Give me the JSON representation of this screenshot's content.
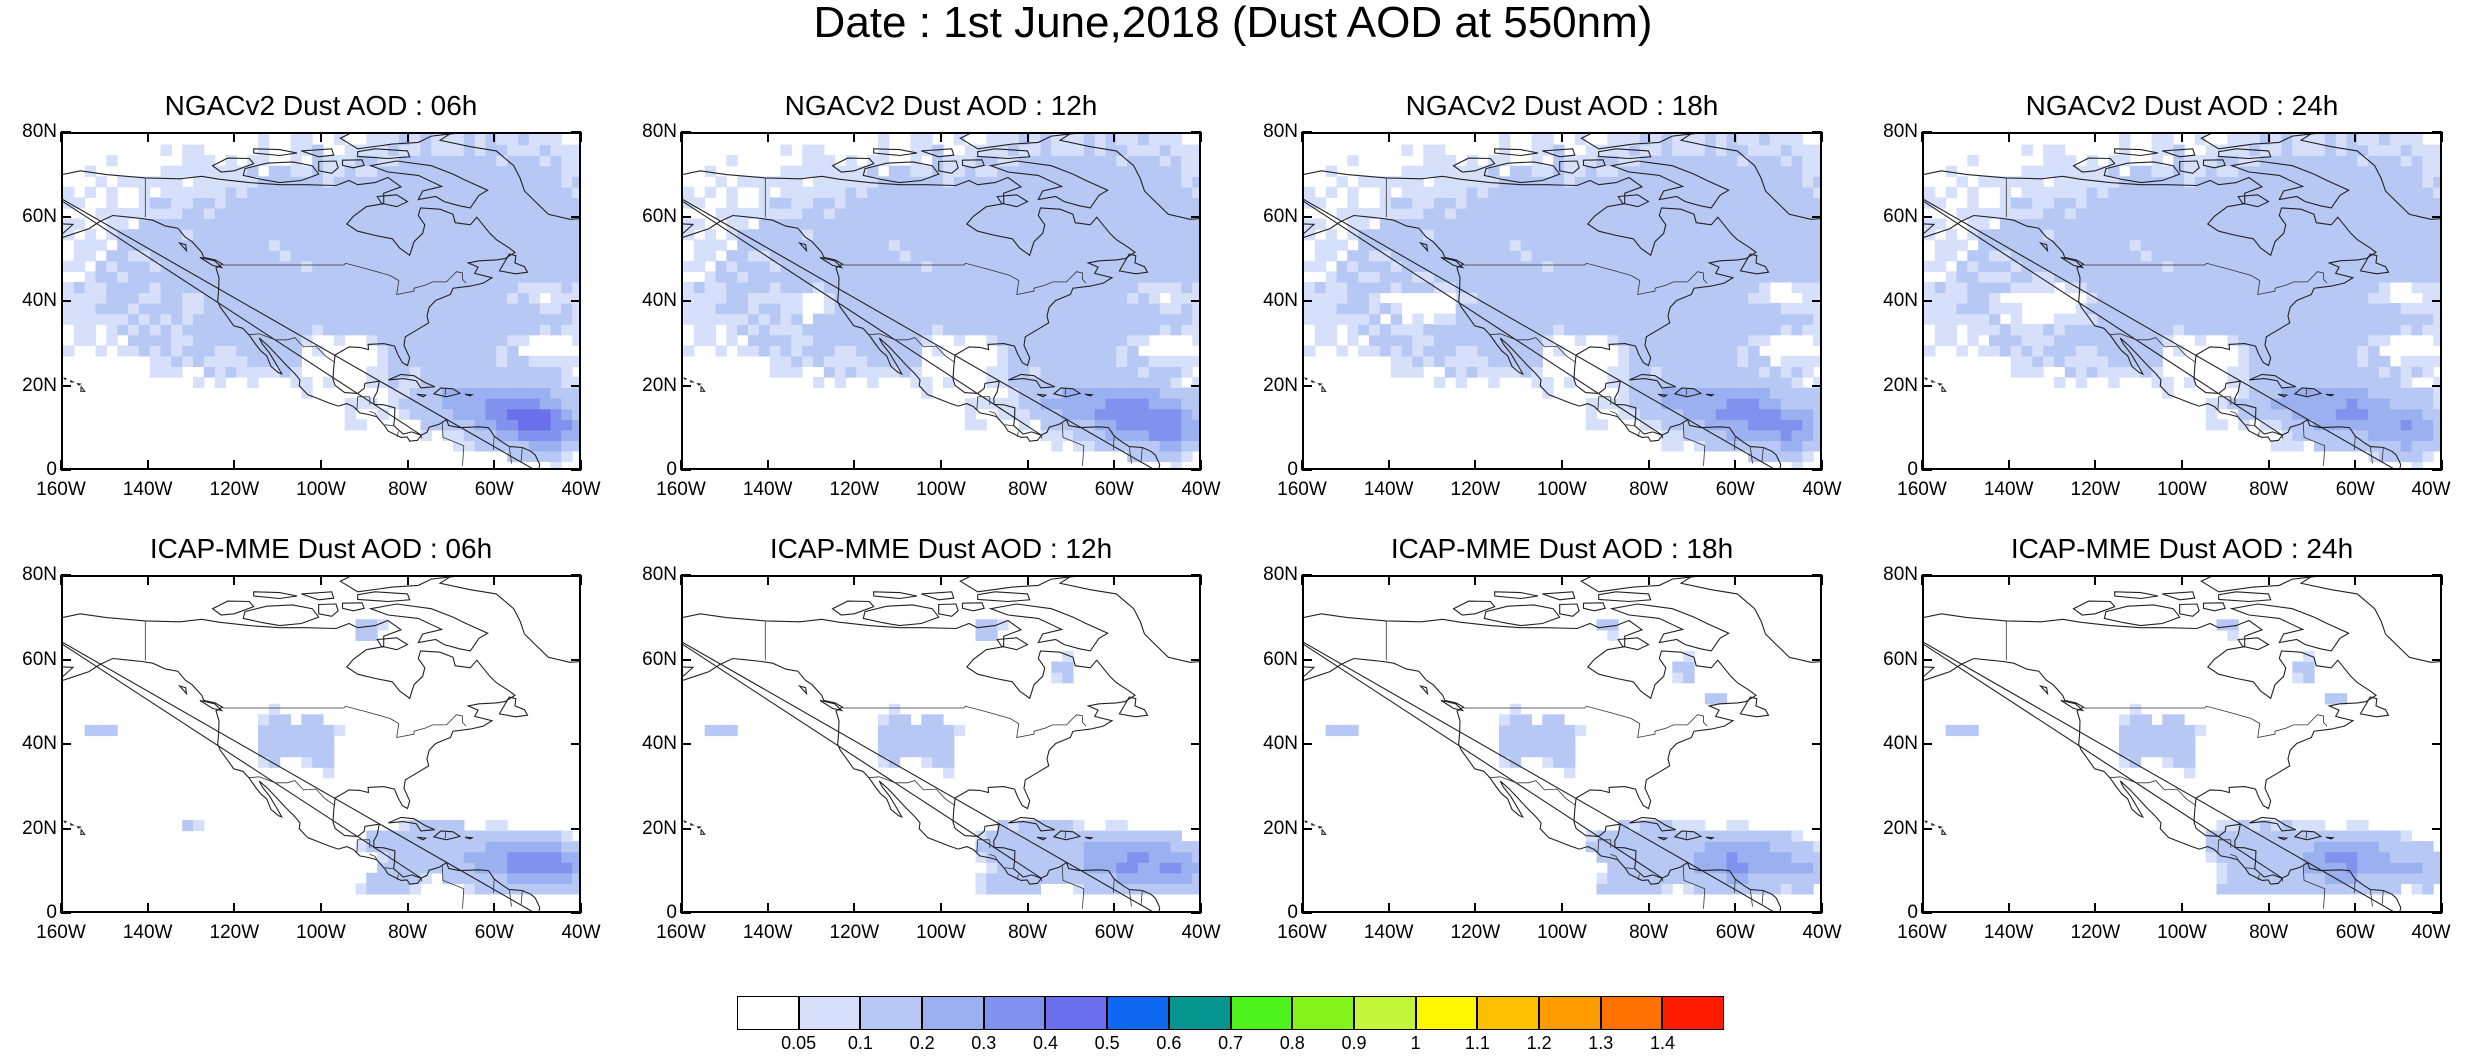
{
  "title": "Date : 1st June,2018 (Dust AOD at 550nm)",
  "panels": [
    {
      "title": "NGACv2 Dust AOD : 06h",
      "model": "ngac",
      "hour": 6
    },
    {
      "title": "NGACv2 Dust AOD : 12h",
      "model": "ngac",
      "hour": 12
    },
    {
      "title": "NGACv2 Dust AOD : 18h",
      "model": "ngac",
      "hour": 18
    },
    {
      "title": "NGACv2 Dust AOD : 24h",
      "model": "ngac",
      "hour": 24
    },
    {
      "title": "ICAP-MME Dust AOD : 06h",
      "model": "icap",
      "hour": 6
    },
    {
      "title": "ICAP-MME Dust AOD : 12h",
      "model": "icap",
      "hour": 12
    },
    {
      "title": "ICAP-MME Dust AOD : 18h",
      "model": "icap",
      "hour": 18
    },
    {
      "title": "ICAP-MME Dust AOD : 24h",
      "model": "icap",
      "hour": 24
    }
  ],
  "lat_labels": [
    "80N",
    "60N",
    "40N",
    "20N",
    "0"
  ],
  "lon_labels": [
    "160W",
    "140W",
    "120W",
    "100W",
    "80W",
    "60W",
    "40W"
  ],
  "colorbar": {
    "labels": [
      "0.05",
      "0.1",
      "0.2",
      "0.3",
      "0.4",
      "0.5",
      "0.6",
      "0.7",
      "0.8",
      "0.9",
      "1",
      "1.1",
      "1.2",
      "1.3",
      "1.4"
    ],
    "colors": [
      "#ffffff",
      "#d6e0fa",
      "#b8c8f4",
      "#9bb0f0",
      "#8191ee",
      "#6a70ec",
      "#0f68f2",
      "#06958e",
      "#4ff41c",
      "#86f41a",
      "#c4f53a",
      "#fff800",
      "#ffc000",
      "#ff9c00",
      "#ff7200",
      "#ff1c00"
    ]
  }
}
